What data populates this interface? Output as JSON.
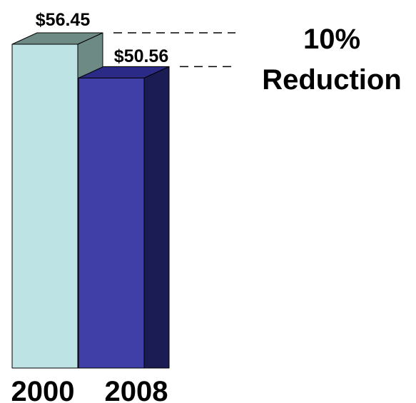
{
  "chart_data": {
    "type": "bar",
    "style": "3d",
    "categories": [
      "2000",
      "2008"
    ],
    "values": [
      56.45,
      50.56
    ],
    "value_labels": [
      "$56.45",
      "$50.56"
    ],
    "ylim": [
      0,
      56.45
    ],
    "grid": false,
    "colors": {
      "2000": {
        "front": "#bde3e4",
        "side": "#6e8a84",
        "top": "#6e8a84"
      },
      "2008": {
        "front": "#3f3fa7",
        "side": "#1c1c55",
        "top": "#2b2b87"
      }
    },
    "annotation": {
      "lines": [
        "10%",
        "Reduction"
      ]
    }
  }
}
